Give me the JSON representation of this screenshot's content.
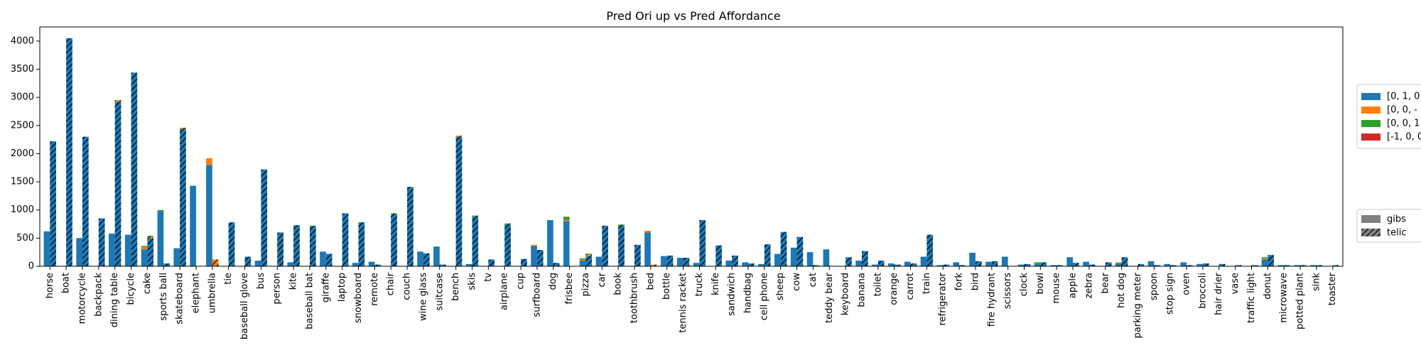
{
  "chart_data": {
    "type": "bar",
    "title": "Pred Ori up vs Pred Affordance",
    "xlabel": "",
    "ylabel": "",
    "ylim": [
      0,
      4250
    ],
    "yticks": [
      0,
      500,
      1000,
      1500,
      2000,
      2500,
      3000,
      3500,
      4000
    ],
    "grid": false,
    "legend_placement": "right",
    "categories": [
      "horse",
      "boat",
      "motorcycle",
      "backpack",
      "dining table",
      "bicycle",
      "cake",
      "sports ball",
      "skateboard",
      "elephant",
      "umbrella",
      "tie",
      "baseball glove",
      "bus",
      "person",
      "kite",
      "baseball bat",
      "giraffe",
      "laptop",
      "snowboard",
      "remote",
      "chair",
      "couch",
      "wine glass",
      "suitcase",
      "bench",
      "skis",
      "tv",
      "airplane",
      "cup",
      "surfboard",
      "dog",
      "frisbee",
      "pizza",
      "car",
      "book",
      "toothbrush",
      "bed",
      "bottle",
      "tennis racket",
      "truck",
      "knife",
      "sandwich",
      "handbag",
      "cell phone",
      "sheep",
      "cow",
      "cat",
      "teddy bear",
      "keyboard",
      "banana",
      "toilet",
      "orange",
      "carrot",
      "train",
      "refrigerator",
      "fork",
      "bird",
      "fire hydrant",
      "scissors",
      "clock",
      "bowl",
      "mouse",
      "apple",
      "zebra",
      "bear",
      "hot dog",
      "parking meter",
      "spoon",
      "stop sign",
      "oven",
      "broccoli",
      "hair drier",
      "vase",
      "traffic light",
      "donut",
      "microwave",
      "potted plant",
      "sink",
      "toaster"
    ],
    "series_legend": [
      "[0, 1, 0",
      "[0, 0, -",
      "[0, 0, 1",
      "[-1, 0, 0"
    ],
    "series_colors": [
      "#1f77b4",
      "#ff7f0e",
      "#2ca02c",
      "#d62728"
    ],
    "hatch_legend": [
      "gibs",
      "telic"
    ],
    "gibs": {
      "s0": [
        620,
        0,
        500,
        0,
        580,
        560,
        300,
        980,
        320,
        1430,
        1800,
        0,
        0,
        100,
        0,
        70,
        0,
        260,
        0,
        60,
        80,
        0,
        0,
        260,
        350,
        0,
        40,
        0,
        0,
        0,
        360,
        820,
        800,
        100,
        170,
        0,
        0,
        600,
        180,
        150,
        60,
        0,
        100,
        70,
        40,
        220,
        330,
        250,
        300,
        0,
        100,
        30,
        50,
        80,
        170,
        20,
        70,
        240,
        80,
        170,
        30,
        40,
        20,
        160,
        80,
        0,
        50,
        0,
        90,
        40,
        70,
        40,
        0,
        0,
        0,
        120,
        20,
        20,
        20,
        0
      ],
      "s1": [
        0,
        0,
        0,
        0,
        0,
        0,
        40,
        0,
        0,
        0,
        120,
        0,
        0,
        0,
        0,
        0,
        0,
        0,
        0,
        0,
        0,
        0,
        0,
        0,
        0,
        0,
        0,
        0,
        0,
        0,
        20,
        0,
        20,
        20,
        0,
        0,
        0,
        30,
        0,
        0,
        0,
        0,
        0,
        0,
        0,
        0,
        0,
        0,
        0,
        0,
        0,
        0,
        0,
        0,
        0,
        0,
        0,
        0,
        0,
        0,
        0,
        0,
        0,
        0,
        0,
        0,
        20,
        0,
        0,
        0,
        0,
        0,
        0,
        0,
        0,
        20,
        0,
        0,
        0,
        0
      ],
      "s2": [
        0,
        0,
        0,
        0,
        0,
        0,
        20,
        20,
        0,
        0,
        0,
        0,
        0,
        0,
        0,
        0,
        0,
        0,
        0,
        0,
        0,
        0,
        0,
        0,
        0,
        0,
        0,
        0,
        0,
        0,
        0,
        0,
        60,
        20,
        0,
        0,
        0,
        0,
        0,
        0,
        0,
        0,
        0,
        0,
        0,
        0,
        0,
        0,
        0,
        0,
        0,
        0,
        0,
        0,
        0,
        0,
        0,
        0,
        0,
        0,
        0,
        30,
        0,
        0,
        0,
        0,
        0,
        0,
        0,
        0,
        0,
        0,
        0,
        0,
        0,
        20,
        0,
        0,
        0,
        0
      ],
      "s3": [
        0,
        0,
        0,
        0,
        0,
        0,
        0,
        0,
        0,
        0,
        0,
        0,
        0,
        0,
        0,
        0,
        0,
        0,
        0,
        0,
        0,
        0,
        0,
        0,
        0,
        0,
        0,
        0,
        0,
        0,
        0,
        0,
        0,
        0,
        0,
        0,
        0,
        0,
        0,
        0,
        0,
        0,
        0,
        0,
        0,
        0,
        0,
        0,
        0,
        0,
        0,
        0,
        0,
        0,
        0,
        0,
        0,
        0,
        0,
        0,
        0,
        0,
        0,
        0,
        0,
        0,
        0,
        0,
        0,
        0,
        0,
        0,
        0,
        0,
        0,
        0,
        0,
        0,
        0,
        0
      ]
    },
    "telic": {
      "s0": [
        2220,
        4050,
        2300,
        850,
        2920,
        3440,
        500,
        50,
        2440,
        0,
        0,
        780,
        170,
        1720,
        600,
        730,
        700,
        220,
        940,
        780,
        30,
        920,
        1410,
        230,
        30,
        2300,
        880,
        120,
        740,
        130,
        290,
        60,
        0,
        180,
        720,
        720,
        380,
        0,
        190,
        150,
        820,
        370,
        190,
        50,
        390,
        610,
        520,
        0,
        0,
        160,
        270,
        100,
        30,
        50,
        560,
        30,
        20,
        90,
        90,
        0,
        40,
        70,
        20,
        60,
        30,
        70,
        160,
        40,
        20,
        20,
        20,
        50,
        40,
        20,
        20,
        200,
        20,
        20,
        20,
        20
      ],
      "s1": [
        0,
        0,
        0,
        0,
        30,
        0,
        20,
        0,
        20,
        0,
        120,
        0,
        0,
        0,
        0,
        0,
        0,
        0,
        0,
        0,
        0,
        0,
        0,
        0,
        0,
        20,
        0,
        0,
        0,
        0,
        0,
        0,
        0,
        20,
        0,
        0,
        0,
        30,
        0,
        0,
        0,
        0,
        0,
        0,
        0,
        0,
        0,
        0,
        0,
        0,
        0,
        0,
        0,
        0,
        0,
        0,
        0,
        0,
        0,
        0,
        0,
        0,
        0,
        0,
        0,
        0,
        0,
        0,
        0,
        0,
        0,
        0,
        0,
        0,
        0,
        0,
        0,
        0,
        0,
        0
      ],
      "s2": [
        0,
        0,
        0,
        0,
        0,
        0,
        20,
        0,
        0,
        0,
        0,
        0,
        0,
        0,
        0,
        0,
        20,
        0,
        0,
        0,
        0,
        20,
        0,
        0,
        0,
        0,
        20,
        0,
        20,
        0,
        0,
        0,
        0,
        20,
        0,
        20,
        0,
        0,
        0,
        0,
        0,
        0,
        0,
        0,
        0,
        0,
        0,
        20,
        0,
        0,
        0,
        0,
        0,
        0,
        0,
        0,
        0,
        0,
        0,
        0,
        0,
        0,
        0,
        0,
        0,
        0,
        0,
        0,
        0,
        0,
        0,
        0,
        0,
        0,
        0,
        0,
        0,
        0,
        0,
        0
      ],
      "s3": [
        0,
        0,
        0,
        0,
        0,
        0,
        0,
        0,
        0,
        0,
        0,
        0,
        0,
        0,
        0,
        0,
        0,
        0,
        0,
        0,
        0,
        0,
        0,
        0,
        0,
        0,
        0,
        0,
        0,
        0,
        0,
        0,
        0,
        0,
        0,
        0,
        0,
        0,
        0,
        0,
        0,
        0,
        0,
        0,
        0,
        0,
        0,
        0,
        0,
        0,
        0,
        0,
        0,
        0,
        0,
        0,
        0,
        0,
        0,
        0,
        0,
        0,
        0,
        0,
        0,
        0,
        0,
        0,
        0,
        0,
        0,
        0,
        0,
        0,
        0,
        0,
        0,
        0,
        0,
        0
      ]
    }
  }
}
